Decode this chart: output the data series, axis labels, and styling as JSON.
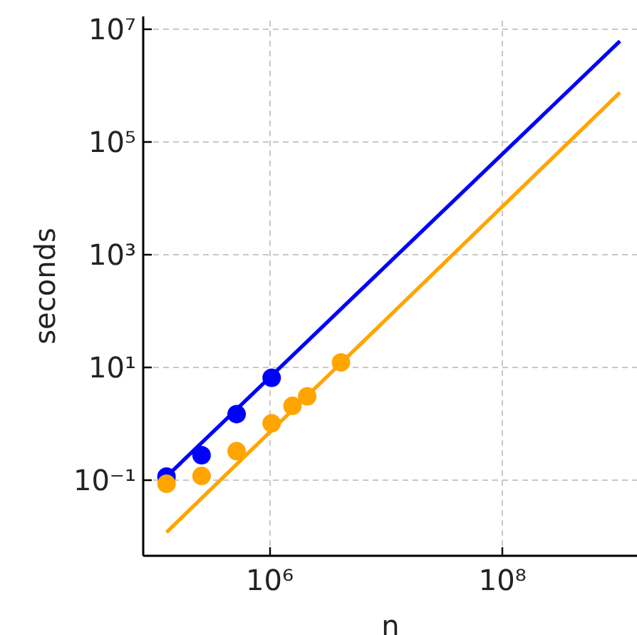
{
  "chart_data": {
    "type": "scatter",
    "xlabel": "n",
    "ylabel": "seconds",
    "log": "xy",
    "grid": true,
    "xlim": [
      82000,
      1450000000
    ],
    "ylim": [
      0.0046,
      17000000
    ],
    "xticks": [
      {
        "value": 1000000,
        "label": "10⁶"
      },
      {
        "value": 100000000,
        "label": "10⁸"
      }
    ],
    "yticks": [
      {
        "value": 0.1,
        "label": "10⁻¹"
      },
      {
        "value": 10,
        "label": "10¹"
      },
      {
        "value": 1000,
        "label": "10³"
      },
      {
        "value": 100000,
        "label": "10⁵"
      },
      {
        "value": 10000000,
        "label": "10⁷"
      }
    ],
    "series": [
      {
        "type": "line",
        "color": "#0000ff",
        "x": [
          130000,
          1020000000
        ],
        "values": [
          0.117,
          6200000
        ]
      },
      {
        "type": "line",
        "color": "#ffa500",
        "x": [
          130000,
          1020000000
        ],
        "values": [
          0.012,
          760000
        ]
      },
      {
        "color": "#0000ff",
        "x": [
          130000,
          260000,
          520000,
          1040000
        ],
        "values": [
          0.117,
          0.28,
          1.5,
          6.6
        ]
      },
      {
        "color": "#ffa500",
        "x": [
          130000,
          260000,
          520000,
          1040000,
          1570000,
          2100000,
          4100000
        ],
        "values": [
          0.087,
          0.12,
          0.33,
          1.03,
          2.1,
          3.1,
          12.4
        ]
      }
    ]
  }
}
